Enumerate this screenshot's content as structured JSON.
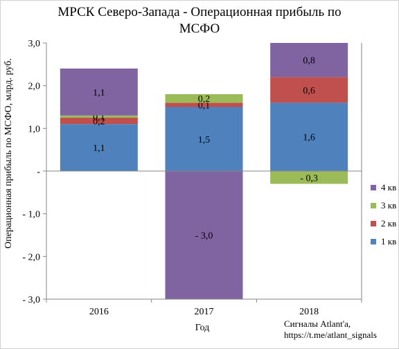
{
  "title": {
    "line1": "МРСК Северо-Запада - Операционная прибыль по",
    "line2": "МСФО"
  },
  "credit": {
    "line1": "Сигналы Atlant'а,",
    "line2": "https://t.me/atlant_signals"
  },
  "chart_data": {
    "type": "bar",
    "stacked": true,
    "categories": [
      "2016",
      "2017",
      "2018"
    ],
    "xlabel": "Год",
    "ylabel": "Операционная прибыль по МСФО, млрд. руб.",
    "ylim": [
      -3.0,
      3.0
    ],
    "yticks": [
      {
        "value": 3.0,
        "label": "3,0"
      },
      {
        "value": 2.0,
        "label": "2,0"
      },
      {
        "value": 1.0,
        "label": "1,0"
      },
      {
        "value": 0.0,
        "label": "-"
      },
      {
        "value": -1.0,
        "label": "- 1,0"
      },
      {
        "value": -2.0,
        "label": "- 2,0"
      },
      {
        "value": -3.0,
        "label": "- 3,0"
      }
    ],
    "legend_position": "right",
    "series": [
      {
        "name": "1 кв",
        "color": "#4f81bd",
        "values": [
          1.1,
          1.5,
          1.6
        ],
        "labels": [
          "1,1",
          "1,5",
          "1,6"
        ]
      },
      {
        "name": "2 кв",
        "color": "#c0504d",
        "values": [
          0.15,
          0.1,
          0.6
        ],
        "labels": [
          "0,2",
          "0,1",
          "0,6"
        ]
      },
      {
        "name": "3 кв",
        "color": "#9bbb59",
        "values": [
          0.05,
          0.2,
          -0.3
        ],
        "labels": [
          "0,1",
          "0,2",
          "- 0,3"
        ]
      },
      {
        "name": "4 кв",
        "color": "#8064a2",
        "values": [
          1.1,
          -3.0,
          0.8
        ],
        "labels": [
          "1,1",
          "- 3,0",
          "0,8"
        ]
      }
    ]
  }
}
